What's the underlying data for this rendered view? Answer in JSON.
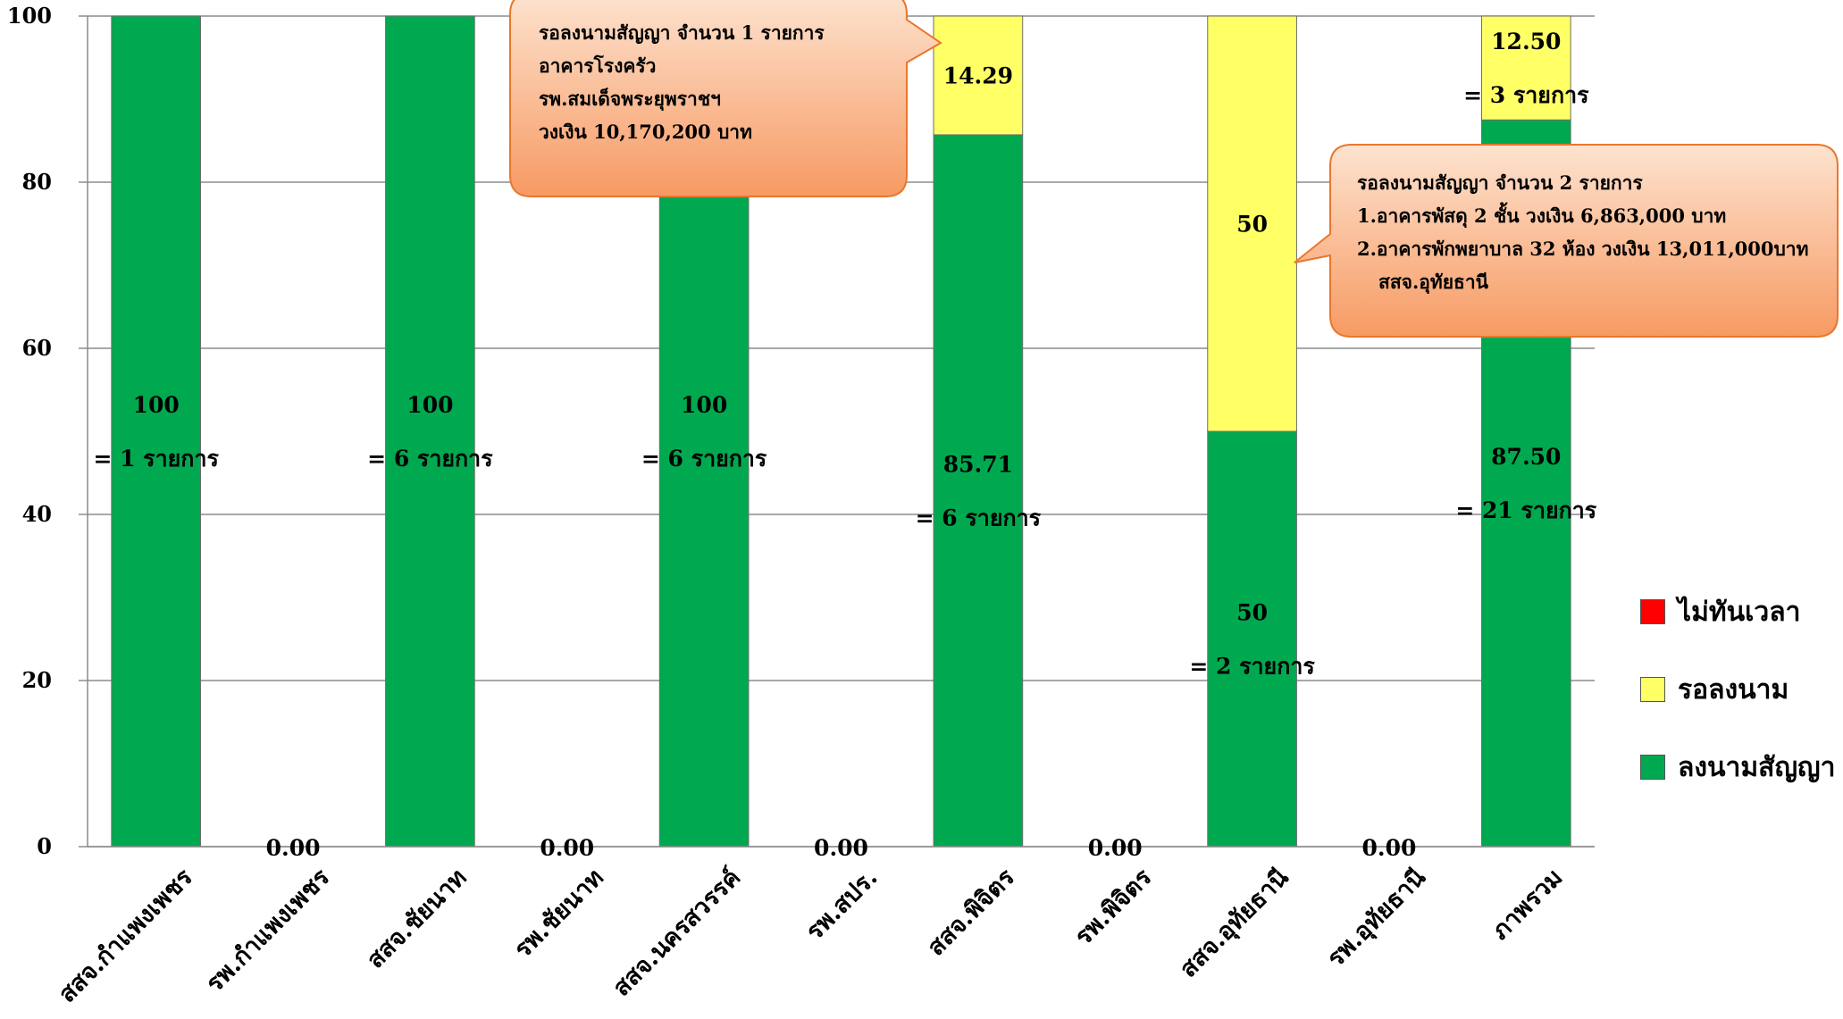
{
  "chart_data": {
    "type": "bar",
    "stacked": true,
    "categories": [
      "สสจ.กำแพงเพชร",
      "รพ.กำแพงเพชร",
      "สสจ.ชัยนาท",
      "รพ.ชัยนาท",
      "สสจ.นครสวรรค์",
      "รพ.สปร.",
      "สสจ.พิจิตร",
      "รพ.พิจิตร",
      "สสจ.อุทัยธานี",
      "รพ.อุทัยธานี",
      "ภาพรวม"
    ],
    "series": [
      {
        "name": "ลงนามสัญญา",
        "color": "#00a94f",
        "values": [
          100,
          0,
          100,
          0,
          100,
          0,
          85.71,
          0,
          50,
          0,
          87.5
        ]
      },
      {
        "name": "รอลงนาม",
        "color": "#ffff66",
        "values": [
          0,
          0,
          0,
          0,
          0,
          0,
          14.29,
          0,
          50,
          0,
          12.5
        ]
      },
      {
        "name": "ไม่ทันเวลา",
        "color": "#ff0000",
        "values": [
          0,
          0,
          0,
          0,
          0,
          0,
          0,
          0,
          0,
          0,
          0
        ]
      }
    ],
    "ylim": [
      0,
      100
    ],
    "yticks": [
      "0",
      "20",
      "40",
      "60",
      "80",
      "100"
    ],
    "grid": true,
    "legend_position": "right",
    "data_labels": [
      {
        "category": 0,
        "series": "ลงนามสัญญา",
        "lines": [
          "100",
          "= 1 รายการ"
        ]
      },
      {
        "category": 2,
        "series": "ลงนามสัญญา",
        "lines": [
          "100",
          "= 6 รายการ"
        ]
      },
      {
        "category": 4,
        "series": "ลงนามสัญญา",
        "lines": [
          "100",
          "= 6 รายการ"
        ]
      },
      {
        "category": 6,
        "series": "ลงนามสัญญา",
        "lines": [
          "85.71",
          "= 6 รายการ"
        ]
      },
      {
        "category": 6,
        "series": "รอลงนาม",
        "lines": [
          "14.29"
        ]
      },
      {
        "category": 8,
        "series": "ลงนามสัญญา",
        "lines": [
          "50",
          "= 2 รายการ"
        ]
      },
      {
        "category": 8,
        "series": "รอลงนาม",
        "lines": [
          "50"
        ]
      },
      {
        "category": 10,
        "series": "ลงนามสัญญา",
        "lines": [
          "87.50",
          "= 21 รายการ"
        ]
      },
      {
        "category": 10,
        "series": "รอลงนาม",
        "lines": [
          "12.50",
          "= 3 รายการ"
        ]
      }
    ],
    "zero_labels": [
      {
        "category": 1,
        "text": "0.00"
      },
      {
        "category": 3,
        "text": "0.00"
      },
      {
        "category": 5,
        "text": "0.00"
      },
      {
        "category": 7,
        "text": "0.00"
      },
      {
        "category": 9,
        "text": "0.00"
      }
    ],
    "annotations": [
      {
        "lines": [
          "รอลงนามสัญญา   จำนวน 1 รายการ",
          "อาคารโรงครัว",
          "รพ.สมเด็จพระยุพราชฯ",
          "วงเงิน 10,170,200 บาท"
        ]
      },
      {
        "lines": [
          "รอลงนามสัญญา   จำนวน 2 รายการ",
          "1.อาคารพัสดุ 2 ชั้น วงเงิน 6,863,000 บาท",
          "2.อาคารพักพยาบาล 32 ห้อง วงเงิน 13,011,000บาท",
          "สสจ.อุทัยธานี"
        ]
      }
    ]
  },
  "legend": [
    {
      "label": "ไม่ทันเวลา",
      "color": "#ff0000"
    },
    {
      "label": "รอลงนาม",
      "color": "#ffff66"
    },
    {
      "label": "ลงนามสัญญา",
      "color": "#00a94f"
    }
  ]
}
